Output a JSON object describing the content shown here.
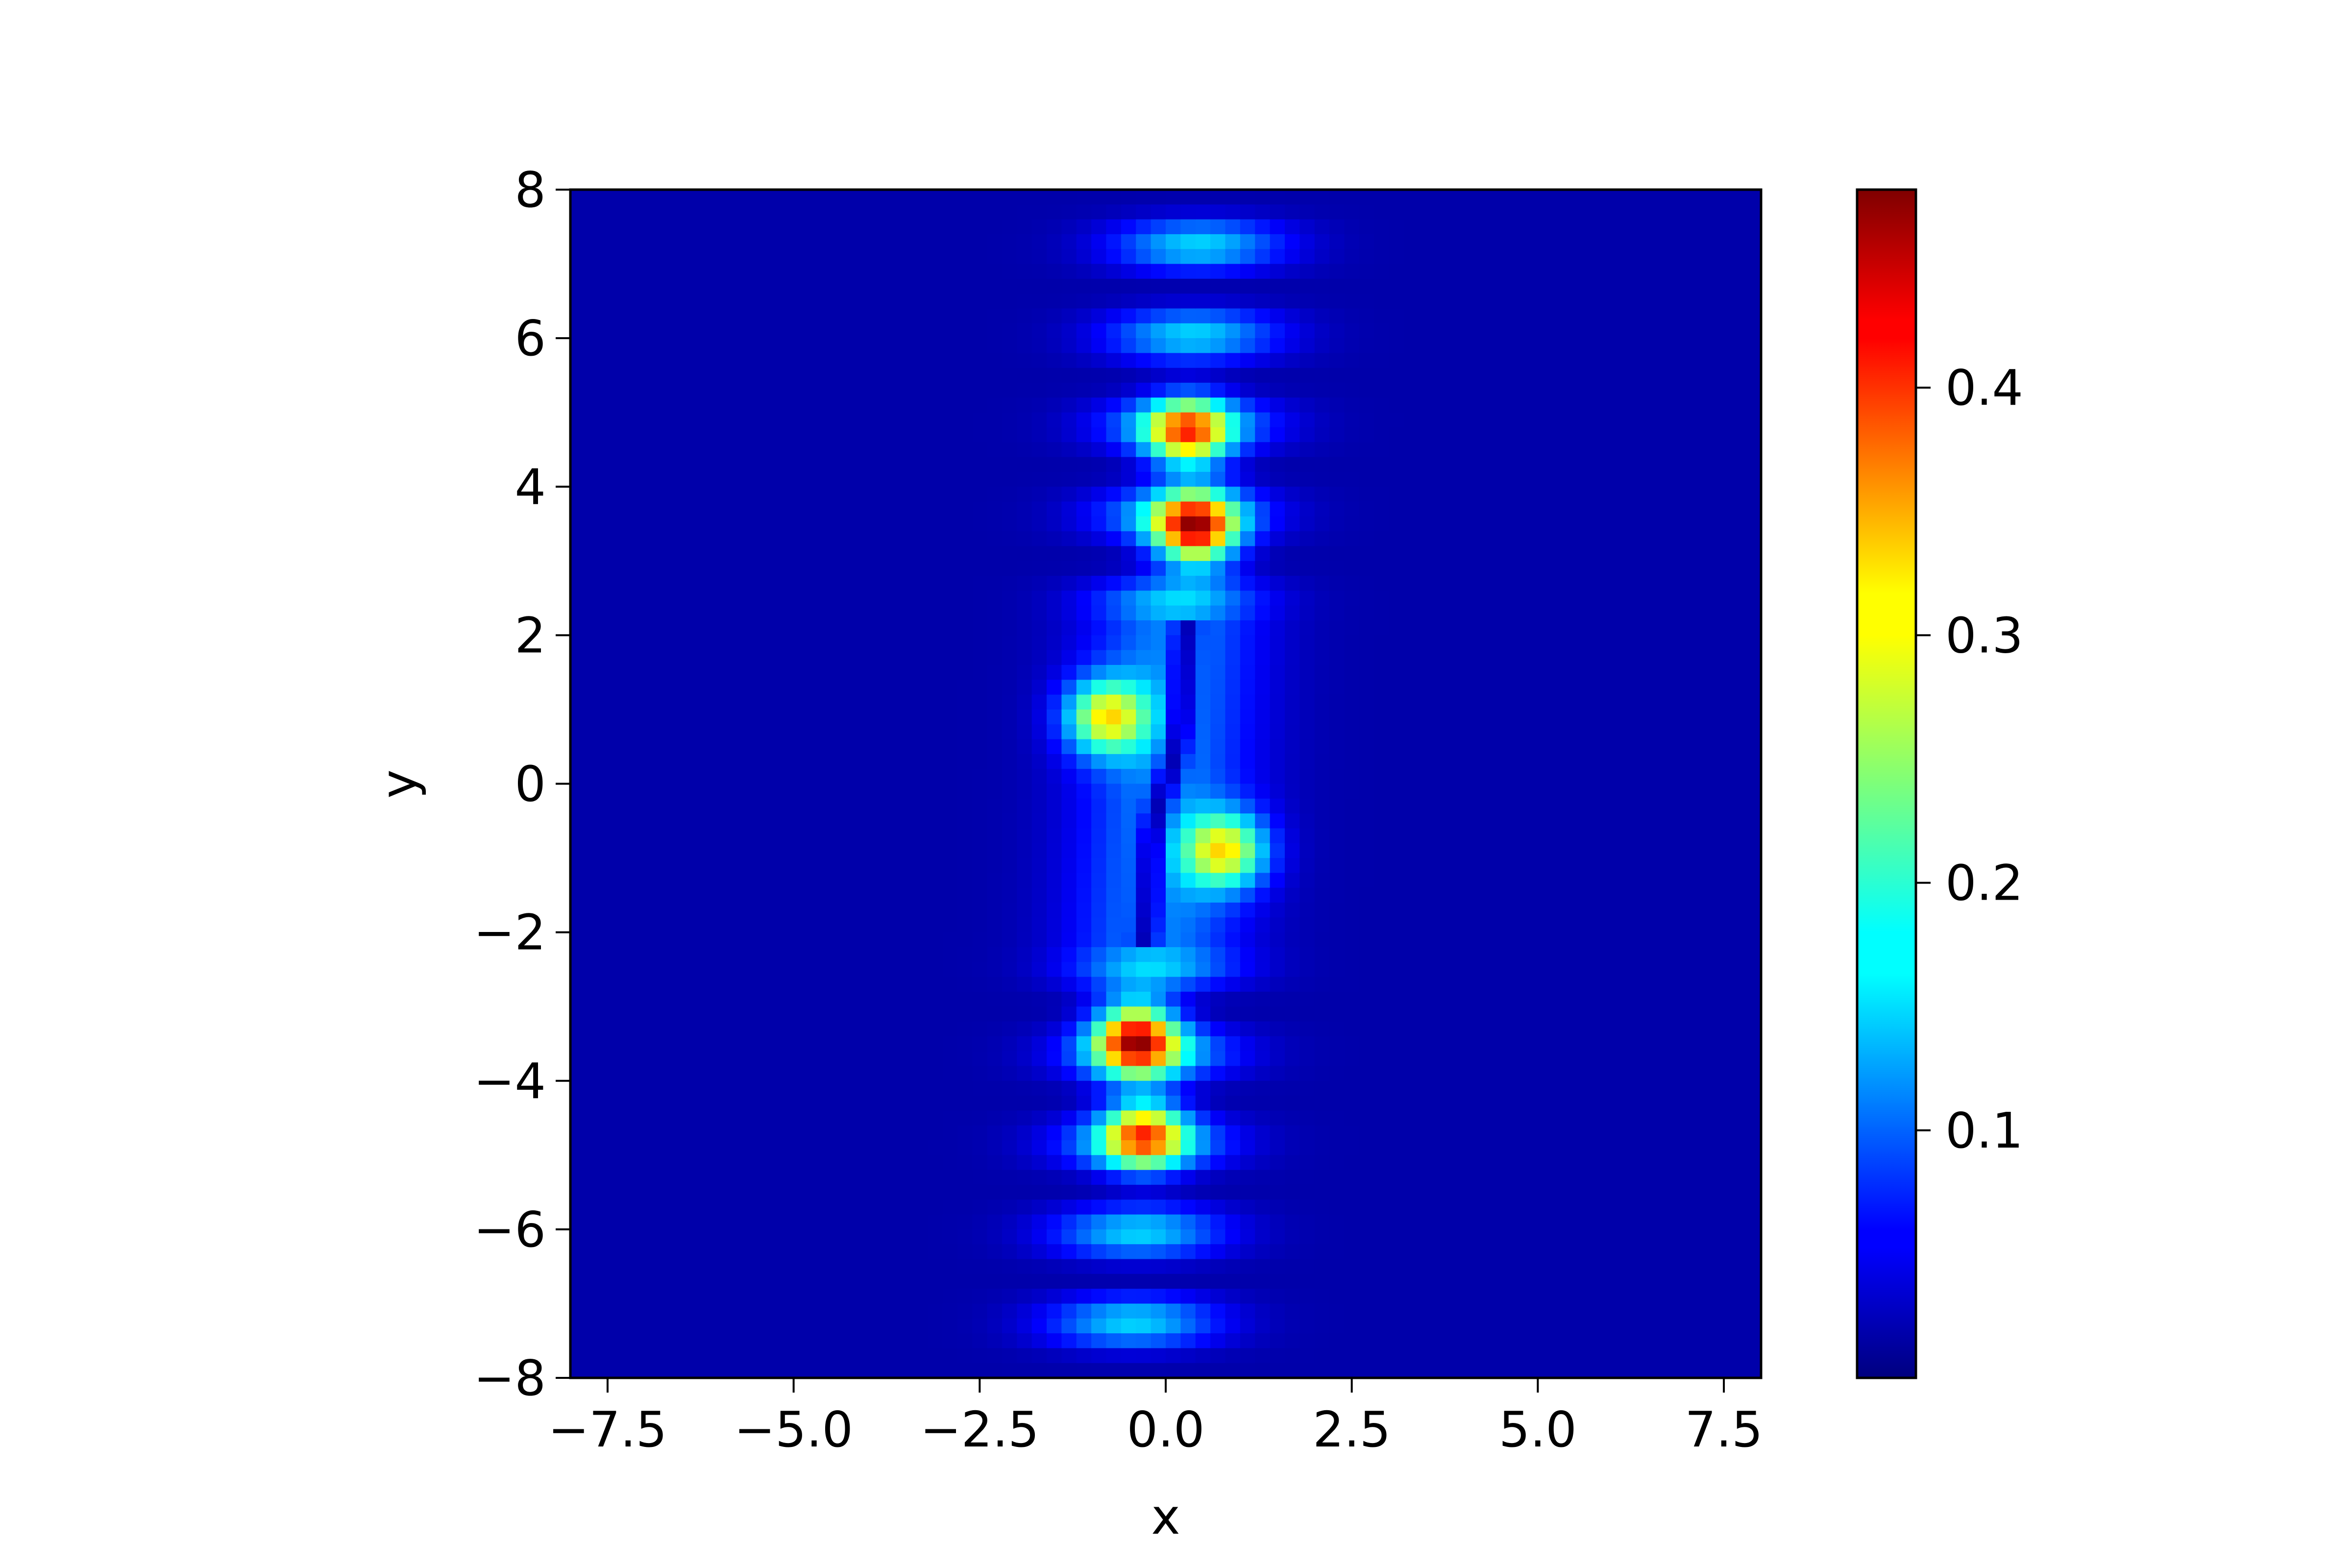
{
  "chart_data": {
    "type": "heatmap",
    "title": "",
    "xlabel": "x",
    "ylabel": "y",
    "xlim": [
      -8,
      8
    ],
    "ylim": [
      -8,
      8
    ],
    "colormap": "jet",
    "grid": false,
    "x_ticks": [
      -7.5,
      -5.0,
      -2.5,
      0.0,
      2.5,
      5.0,
      7.5
    ],
    "y_ticks": [
      -8,
      -6,
      -4,
      -2,
      0,
      2,
      4,
      6,
      8
    ],
    "x_tick_labels": [
      "−7.5",
      "−5.0",
      "−2.5",
      "0.0",
      "2.5",
      "5.0",
      "7.5"
    ],
    "y_tick_labels": [
      "−8",
      "−6",
      "−4",
      "−2",
      "0",
      "2",
      "4",
      "6",
      "8"
    ],
    "colorbar": {
      "range": [
        0.0,
        0.48
      ],
      "ticks": [
        0.1,
        0.2,
        0.3,
        0.4
      ],
      "tick_labels": [
        "0.1",
        "0.2",
        "0.3",
        "0.4"
      ]
    },
    "peaks": [
      {
        "x": 0.4,
        "y": 3.4,
        "value": 0.47
      },
      {
        "x": -0.4,
        "y": -3.4,
        "value": 0.47
      },
      {
        "x": -0.8,
        "y": 0.9,
        "value": 0.36
      },
      {
        "x": 0.8,
        "y": -0.9,
        "value": 0.36
      },
      {
        "x": 0.3,
        "y": 4.7,
        "value": 0.38
      },
      {
        "x": -0.3,
        "y": -4.7,
        "value": 0.38
      }
    ]
  }
}
